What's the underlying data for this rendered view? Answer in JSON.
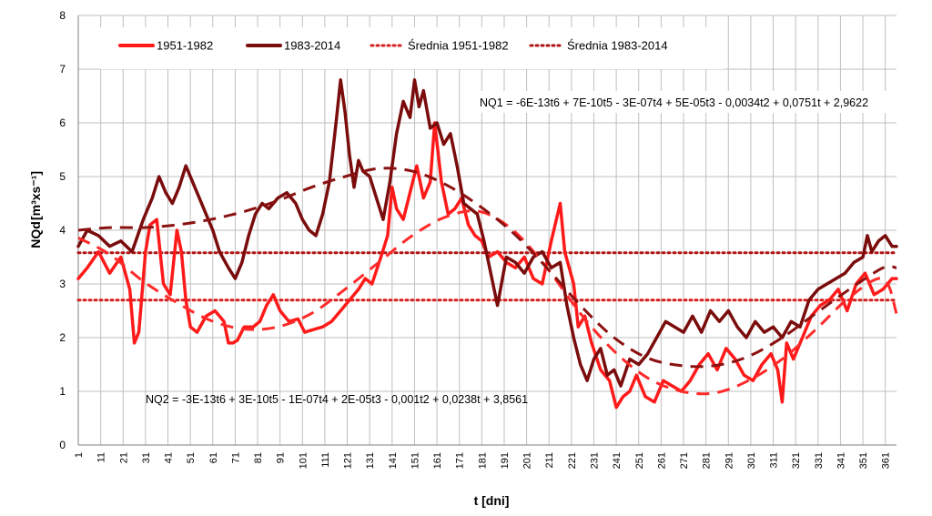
{
  "chart_data": {
    "type": "line",
    "xlabel": "t [dni]",
    "ylabel": "NQd",
    "ylabel_unit": "[m³xs⁻¹]",
    "ylim": [
      0,
      8
    ],
    "xlim": [
      1,
      366
    ],
    "yticks": [
      "0",
      "1",
      "2",
      "3",
      "4",
      "5",
      "6",
      "7",
      "8"
    ],
    "xticks": [
      "1",
      "11",
      "21",
      "31",
      "41",
      "51",
      "61",
      "71",
      "81",
      "91",
      "101",
      "111",
      "121",
      "131",
      "141",
      "151",
      "161",
      "171",
      "181",
      "191",
      "201",
      "211",
      "221",
      "231",
      "241",
      "251",
      "261",
      "271",
      "281",
      "291",
      "301",
      "311",
      "321",
      "331",
      "341",
      "351",
      "361"
    ],
    "grid": true,
    "legend_position": "top",
    "series": [
      {
        "name": "1951-1982",
        "color": "#ff1a1a",
        "style": "solid",
        "x": [
          1,
          5,
          10,
          15,
          20,
          24,
          26,
          28,
          31,
          33,
          36,
          39,
          42,
          45,
          47,
          49,
          51,
          54,
          58,
          62,
          66,
          68,
          70,
          72,
          75,
          79,
          82,
          85,
          88,
          91,
          95,
          99,
          102,
          106,
          110,
          114,
          118,
          122,
          126,
          129,
          132,
          136,
          139,
          141,
          143,
          146,
          149,
          152,
          155,
          158,
          160,
          163,
          166,
          169,
          172,
          175,
          178,
          181,
          184,
          188,
          192,
          196,
          200,
          204,
          208,
          212,
          216,
          218,
          220,
          222,
          224,
          227,
          230,
          234,
          238,
          241,
          244,
          247,
          250,
          254,
          258,
          262,
          266,
          270,
          274,
          278,
          282,
          286,
          290,
          294,
          298,
          302,
          306,
          310,
          313,
          315,
          317,
          320,
          324,
          328,
          332,
          336,
          340,
          344,
          348,
          352,
          356,
          360,
          364,
          366
        ],
        "y": [
          3.1,
          3.3,
          3.6,
          3.2,
          3.5,
          2.9,
          1.9,
          2.1,
          3.6,
          4.1,
          4.2,
          3.0,
          2.8,
          4.0,
          3.6,
          2.7,
          2.2,
          2.1,
          2.4,
          2.5,
          2.3,
          1.9,
          1.9,
          1.95,
          2.2,
          2.2,
          2.3,
          2.6,
          2.8,
          2.5,
          2.3,
          2.35,
          2.1,
          2.15,
          2.2,
          2.3,
          2.5,
          2.7,
          2.9,
          3.1,
          3.0,
          3.5,
          3.9,
          4.8,
          4.4,
          4.2,
          4.7,
          5.2,
          4.6,
          4.9,
          6.0,
          4.9,
          4.3,
          4.4,
          4.6,
          4.1,
          3.9,
          3.8,
          3.5,
          3.6,
          3.4,
          3.3,
          3.5,
          3.1,
          3.0,
          3.8,
          4.5,
          3.6,
          3.3,
          3.0,
          2.2,
          2.4,
          1.9,
          1.4,
          1.2,
          0.7,
          0.9,
          1.0,
          1.3,
          0.9,
          0.8,
          1.2,
          1.1,
          1.0,
          1.2,
          1.5,
          1.7,
          1.4,
          1.8,
          1.6,
          1.3,
          1.2,
          1.5,
          1.7,
          1.4,
          0.8,
          1.9,
          1.6,
          2.0,
          2.4,
          2.6,
          2.7,
          2.9,
          2.5,
          3.0,
          3.2,
          2.8,
          2.9,
          3.1,
          3.1
        ]
      },
      {
        "name": "1983-2014",
        "color": "#7a0c0c",
        "style": "solid",
        "x": [
          1,
          5,
          10,
          15,
          20,
          25,
          30,
          34,
          37,
          40,
          43,
          46,
          49,
          52,
          55,
          58,
          61,
          64,
          68,
          71,
          74,
          77,
          80,
          83,
          86,
          90,
          94,
          98,
          101,
          104,
          107,
          110,
          113,
          116,
          118,
          120,
          122,
          124,
          126,
          128,
          131,
          134,
          137,
          140,
          143,
          146,
          149,
          151,
          153,
          155,
          158,
          161,
          164,
          167,
          170,
          173,
          176,
          179,
          182,
          185,
          188,
          192,
          196,
          200,
          204,
          208,
          212,
          216,
          219,
          222,
          225,
          228,
          231,
          234,
          237,
          240,
          243,
          247,
          251,
          255,
          259,
          263,
          267,
          271,
          275,
          279,
          283,
          287,
          291,
          295,
          299,
          303,
          307,
          311,
          315,
          319,
          323,
          327,
          331,
          335,
          339,
          343,
          347,
          351,
          353,
          355,
          358,
          361,
          364,
          366
        ],
        "y": [
          3.7,
          4.0,
          3.9,
          3.7,
          3.8,
          3.6,
          4.2,
          4.6,
          5.0,
          4.7,
          4.5,
          4.8,
          5.2,
          4.9,
          4.6,
          4.3,
          4.0,
          3.6,
          3.3,
          3.1,
          3.4,
          3.9,
          4.3,
          4.5,
          4.4,
          4.6,
          4.7,
          4.5,
          4.2,
          4.0,
          3.9,
          4.3,
          4.9,
          6.0,
          6.8,
          6.2,
          5.4,
          4.8,
          5.3,
          5.1,
          5.0,
          4.6,
          4.2,
          4.9,
          5.8,
          6.4,
          6.1,
          6.8,
          6.3,
          6.6,
          5.9,
          6.0,
          5.6,
          5.8,
          5.2,
          4.5,
          4.4,
          4.3,
          3.8,
          3.2,
          2.6,
          3.5,
          3.4,
          3.2,
          3.5,
          3.6,
          3.3,
          3.4,
          2.6,
          2.0,
          1.5,
          1.2,
          1.6,
          1.8,
          1.3,
          1.4,
          1.1,
          1.6,
          1.5,
          1.7,
          2.0,
          2.3,
          2.2,
          2.1,
          2.4,
          2.1,
          2.5,
          2.3,
          2.5,
          2.2,
          2.0,
          2.3,
          2.1,
          2.2,
          2.0,
          2.3,
          2.2,
          2.7,
          2.9,
          3.0,
          3.1,
          3.2,
          3.4,
          3.5,
          3.9,
          3.6,
          3.8,
          3.9,
          3.7,
          3.7
        ]
      },
      {
        "name": "Średnia 1951-1982",
        "color": "#d62020",
        "style": "dotted",
        "x": [
          1,
          366
        ],
        "y": [
          2.7,
          2.7
        ]
      },
      {
        "name": "Średnia 1983-2014",
        "color": "#b01515",
        "style": "dotted",
        "x": [
          1,
          366
        ],
        "y": [
          3.58,
          3.58
        ]
      }
    ],
    "trendlines": [
      {
        "series": "1951-1982",
        "color": "#ff2a2a",
        "style": "dashed",
        "equation": "NQ2 = -3E-13t6 + 3E-10t5 - 1E-07t4 + 2E-05t3 - 0,001t2 + 0,0238t + 3,8561",
        "x": [
          1,
          15,
          30,
          45,
          60,
          75,
          90,
          105,
          120,
          135,
          150,
          165,
          180,
          195,
          210,
          225,
          240,
          255,
          270,
          285,
          300,
          315,
          330,
          345,
          360,
          366
        ],
        "y": [
          3.86,
          3.55,
          3.05,
          2.65,
          2.32,
          2.16,
          2.2,
          2.45,
          2.9,
          3.4,
          3.9,
          4.25,
          4.35,
          4.0,
          3.3,
          2.45,
          1.75,
          1.25,
          1.0,
          0.97,
          1.2,
          1.6,
          2.15,
          2.75,
          3.1,
          2.45
        ]
      },
      {
        "series": "1983-2014",
        "color": "#8b1010",
        "style": "dashed",
        "equation": "NQ1 = -6E-13t6 + 7E-10t5 - 3E-07t4 + 5E-05t3 - 0,0034t2 + 0,0751t + 2,9622",
        "x": [
          1,
          15,
          30,
          45,
          60,
          75,
          90,
          105,
          120,
          135,
          150,
          165,
          180,
          195,
          210,
          225,
          240,
          255,
          270,
          285,
          300,
          315,
          330,
          345,
          360,
          366
        ],
        "y": [
          4.0,
          4.05,
          4.05,
          4.1,
          4.2,
          4.35,
          4.55,
          4.8,
          5.0,
          5.15,
          5.1,
          4.85,
          4.45,
          3.95,
          3.3,
          2.6,
          2.0,
          1.62,
          1.48,
          1.48,
          1.65,
          2.0,
          2.45,
          2.9,
          3.3,
          3.3
        ]
      }
    ]
  }
}
